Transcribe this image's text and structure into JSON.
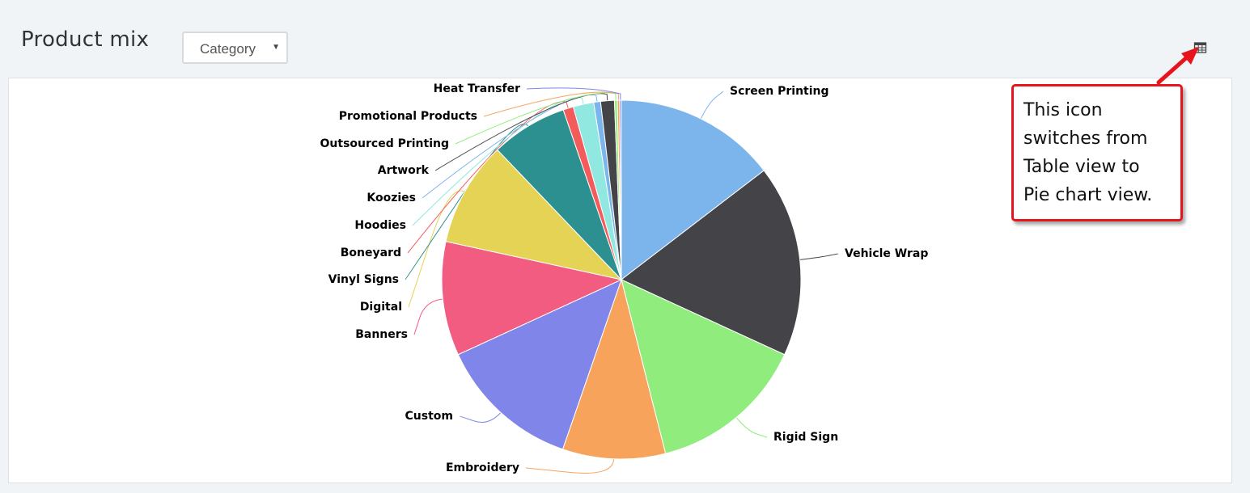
{
  "header": {
    "title": "Product mix",
    "dropdown": {
      "selected": "Category"
    }
  },
  "icons": {
    "view_toggle": "table-icon"
  },
  "annotation": {
    "text": "This icon switches from Table view to Pie chart view.",
    "color": "#e8141c"
  },
  "chart_data": {
    "type": "pie",
    "start": "12 o'clock, clockwise",
    "slices": [
      {
        "label": "Screen Printing",
        "value": 14.2,
        "color": "#7cb5ec"
      },
      {
        "label": "Vehicle Wrap",
        "value": 16.8,
        "color": "#434348"
      },
      {
        "label": "Rigid Sign",
        "value": 13.8,
        "color": "#90ed7d"
      },
      {
        "label": "Embroidery",
        "value": 9.0,
        "color": "#f7a35c"
      },
      {
        "label": "Custom",
        "value": 12.5,
        "color": "#8085e9"
      },
      {
        "label": "Banners",
        "value": 10.0,
        "color": "#f15c80"
      },
      {
        "label": "Digital",
        "value": 9.2,
        "color": "#e4d354"
      },
      {
        "label": "Vinyl Signs",
        "value": 6.7,
        "color": "#2b908f"
      },
      {
        "label": "Boneyard",
        "value": 0.9,
        "color": "#f45b5b"
      },
      {
        "label": "Hoodies",
        "value": 1.8,
        "color": "#91e8e1"
      },
      {
        "label": "Koozies",
        "value": 0.6,
        "color": "#7cb5ec"
      },
      {
        "label": "Artwork",
        "value": 1.2,
        "color": "#434348"
      },
      {
        "label": "Outsourced Printing",
        "value": 0.25,
        "color": "#90ed7d"
      },
      {
        "label": "Promotional Products",
        "value": 0.2,
        "color": "#f7a35c"
      },
      {
        "label": "Heat Transfer",
        "value": 0.15,
        "color": "#8085e9"
      }
    ]
  }
}
